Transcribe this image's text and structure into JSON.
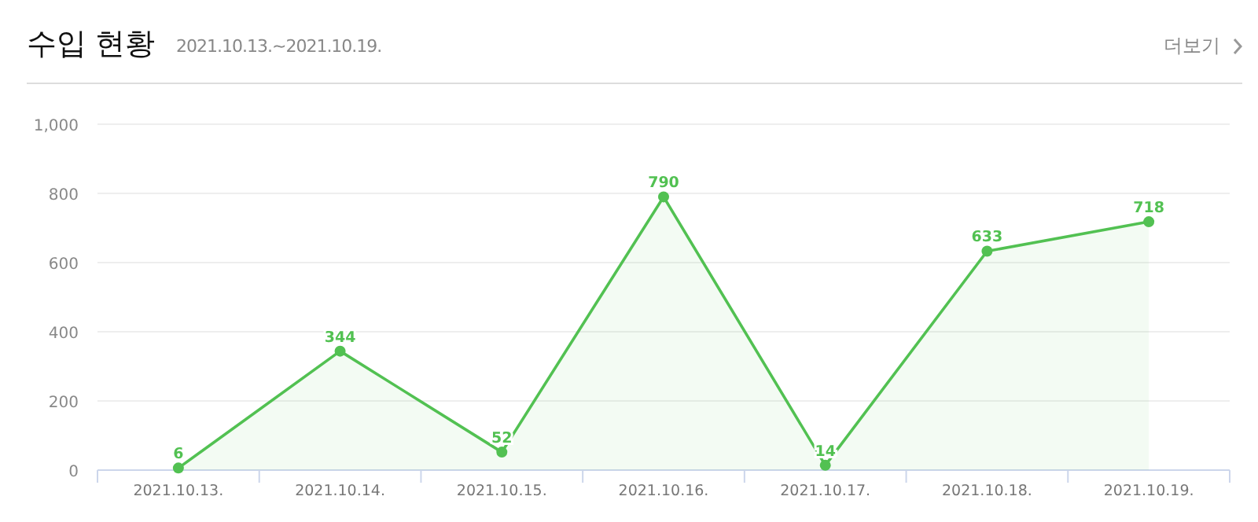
{
  "chart_data": {
    "type": "area",
    "title": "수입 현황",
    "subtitle": "2021.10.13.~2021.10.19.",
    "annotations": [
      "더보기"
    ],
    "categories": [
      "2021.10.13.",
      "2021.10.14.",
      "2021.10.15.",
      "2021.10.16.",
      "2021.10.17.",
      "2021.10.18.",
      "2021.10.19."
    ],
    "series": [
      {
        "color": "#52c152",
        "values": [
          6,
          344,
          52,
          790,
          14,
          633,
          718
        ]
      }
    ],
    "ylim": [
      0,
      1000
    ],
    "yticks": [
      {
        "value": 0,
        "label": "0"
      },
      {
        "value": 200,
        "label": "200"
      },
      {
        "value": 400,
        "label": "400"
      },
      {
        "value": 600,
        "label": "600"
      },
      {
        "value": 800,
        "label": "800"
      },
      {
        "value": 1000,
        "label": "1,000"
      }
    ],
    "grid": "y",
    "marker": "circle",
    "data_labels": true
  }
}
